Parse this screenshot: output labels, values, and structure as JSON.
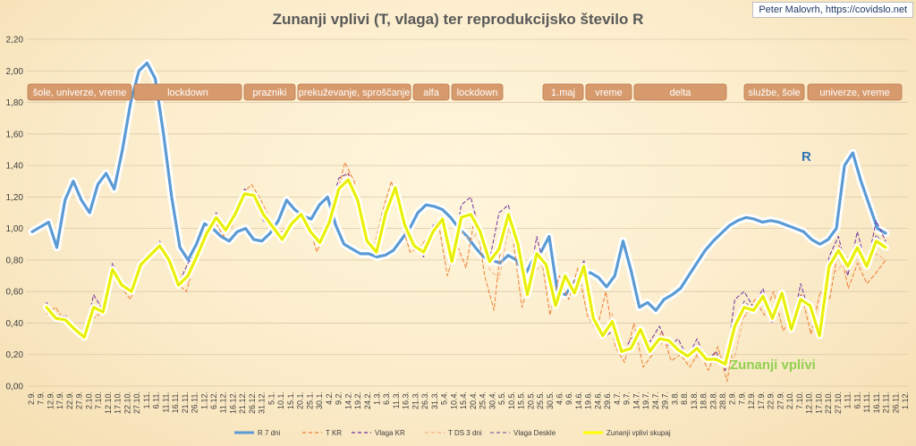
{
  "credit": "Peter Malovrh, https://covidslo.net",
  "chart_data": {
    "type": "line",
    "title": "Zunanji vplivi (T, vlaga) ter reprodukcijsko število R",
    "ylim": [
      0,
      2.2
    ],
    "ytick_labels": [
      "0,00",
      "0,20",
      "0,40",
      "0,60",
      "0,80",
      "1,00",
      "1,20",
      "1,40",
      "1,60",
      "1,80",
      "2,00",
      "2,20"
    ],
    "xtick_labels": [
      "2.9.",
      "7.9.",
      "12.9.",
      "17.9.",
      "22.9.",
      "27.9.",
      "2.10.",
      "7.10.",
      "12.10.",
      "17.10.",
      "22.10.",
      "27.10.",
      "1.11.",
      "6.11.",
      "11.11.",
      "16.11.",
      "21.11.",
      "26.11.",
      "1.12.",
      "6.12.",
      "11.12.",
      "16.12.",
      "21.12.",
      "26.12.",
      "31.12.",
      "5.1.",
      "10.1.",
      "15.1.",
      "20.1.",
      "25.1.",
      "30.1.",
      "4.2.",
      "9.2.",
      "14.2.",
      "19.2.",
      "24.2.",
      "1.3.",
      "6.3.",
      "11.3.",
      "16.3.",
      "21.3.",
      "26.3.",
      "31.3.",
      "5.4.",
      "10.4.",
      "15.4.",
      "20.4.",
      "25.4.",
      "30.4.",
      "5.5.",
      "10.5.",
      "15.5.",
      "20.5.",
      "25.5.",
      "30.5.",
      "4.6.",
      "9.6.",
      "14.6.",
      "19.6.",
      "24.6.",
      "29.6.",
      "4.7.",
      "9.7.",
      "14.7.",
      "19.7.",
      "24.7.",
      "29.7.",
      "3.8.",
      "8.8.",
      "13.8.",
      "18.8.",
      "23.8.",
      "28.8.",
      "2.9.",
      "7.9.",
      "12.9.",
      "17.9.",
      "22.9.",
      "27.9.",
      "2.10.",
      "7.10.",
      "12.10.",
      "17.10.",
      "22.10.",
      "27.10.",
      "1.11.",
      "6.11.",
      "11.11.",
      "16.11.",
      "21.11.",
      "26.11.",
      "1.12."
    ],
    "grid": true,
    "legend_position": "bottom",
    "series": [
      {
        "name": "R 7 dni",
        "color": "#5b9bd5",
        "style": "solid",
        "y": [
          0.98,
          1.01,
          1.04,
          0.88,
          1.18,
          1.3,
          1.18,
          1.1,
          1.28,
          1.35,
          1.25,
          1.5,
          1.8,
          2.0,
          2.05,
          1.95,
          1.6,
          1.2,
          0.88,
          0.8,
          0.9,
          1.03,
          1.0,
          0.95,
          0.92,
          0.98,
          1.0,
          0.93,
          0.92,
          0.97,
          1.05,
          1.18,
          1.12,
          1.08,
          1.06,
          1.15,
          1.2,
          1.02,
          0.9,
          0.87,
          0.84,
          0.84,
          0.82,
          0.83,
          0.86,
          0.93,
          1.0,
          1.1,
          1.15,
          1.14,
          1.12,
          1.07,
          1.0,
          0.95,
          0.88,
          0.82,
          0.8,
          0.78,
          0.83,
          0.8,
          0.7,
          0.8,
          0.85,
          0.95,
          0.6,
          0.58,
          0.66,
          0.7,
          0.72,
          0.69,
          0.63,
          0.7,
          0.92,
          0.73,
          0.5,
          0.53,
          0.48,
          0.55,
          0.58,
          0.62,
          0.7,
          0.78,
          0.86,
          0.92,
          0.97,
          1.02,
          1.05,
          1.07,
          1.06,
          1.04,
          1.05,
          1.04,
          1.02,
          1.0,
          0.98,
          0.93,
          0.9,
          0.93,
          1.0,
          1.4,
          1.48,
          1.3,
          1.15,
          1.0,
          0.97
        ]
      },
      {
        "name": "T KR",
        "color": "#ed7d31",
        "style": "dashed",
        "y": [
          0.46,
          0.5,
          0.4,
          0.38,
          0.33,
          0.43,
          0.47,
          0.72,
          0.63,
          0.55,
          0.74,
          0.8,
          0.88,
          0.85,
          0.65,
          0.6,
          0.8,
          0.92,
          1.05,
          0.95,
          1.02,
          1.22,
          1.28,
          1.18,
          1.05,
          0.97,
          1.02,
          1.1,
          1.05,
          0.85,
          1.0,
          1.18,
          1.42,
          1.3,
          0.95,
          0.85,
          1.1,
          1.3,
          1.05,
          0.85,
          0.88,
          0.95,
          1.05,
          0.7,
          0.9,
          0.75,
          1.1,
          0.7,
          0.48,
          1.05,
          0.95,
          0.5,
          0.7,
          0.85,
          0.45,
          0.7,
          0.55,
          0.75,
          0.45,
          0.35,
          0.6,
          0.25,
          0.15,
          0.4,
          0.12,
          0.2,
          0.35,
          0.16,
          0.2,
          0.12,
          0.22,
          0.1,
          0.25,
          0.03,
          0.4,
          0.45,
          0.55,
          0.45,
          0.6,
          0.35,
          0.45,
          0.58,
          0.33,
          0.6,
          0.55,
          0.9,
          0.62,
          0.78,
          0.65,
          0.72,
          0.8
        ]
      },
      {
        "name": "Vlaga KR",
        "color": "#7030a0",
        "style": "dashed",
        "y": [
          0.53,
          0.42,
          0.45,
          0.35,
          0.3,
          0.58,
          0.48,
          0.78,
          0.65,
          0.62,
          0.8,
          0.85,
          0.92,
          0.78,
          0.65,
          0.78,
          0.85,
          0.98,
          1.1,
          1.0,
          1.12,
          1.25,
          1.2,
          1.05,
          1.0,
          0.92,
          1.05,
          1.1,
          0.95,
          0.93,
          1.08,
          1.32,
          1.35,
          1.15,
          0.9,
          0.85,
          1.12,
          1.25,
          1.0,
          0.9,
          0.82,
          1.02,
          1.08,
          0.8,
          1.15,
          1.2,
          0.95,
          0.8,
          1.1,
          1.15,
          0.85,
          0.6,
          0.95,
          0.7,
          0.55,
          0.7,
          0.6,
          0.8,
          0.4,
          0.3,
          0.35,
          0.2,
          0.3,
          0.35,
          0.28,
          0.38,
          0.25,
          0.3,
          0.18,
          0.3,
          0.15,
          0.22,
          0.1,
          0.55,
          0.6,
          0.5,
          0.62,
          0.4,
          0.6,
          0.35,
          0.65,
          0.45,
          0.3,
          0.82,
          0.95,
          0.7,
          0.98,
          0.75,
          1.05,
          0.92
        ]
      },
      {
        "name": "T DS 3 dni",
        "color": "#f4b183",
        "style": "dashed",
        "y": [
          0.48,
          0.44,
          0.4,
          0.36,
          0.32,
          0.48,
          0.5,
          0.7,
          0.64,
          0.6,
          0.76,
          0.82,
          0.86,
          0.8,
          0.66,
          0.66,
          0.82,
          0.96,
          1.04,
          0.98,
          1.08,
          1.2,
          1.22,
          1.1,
          1.02,
          0.94,
          1.02,
          1.08,
          1.0,
          0.9,
          1.02,
          1.22,
          1.36,
          1.22,
          0.94,
          0.86,
          1.08,
          1.24,
          1.02,
          0.88,
          0.86,
          0.96,
          1.04,
          0.78,
          0.98,
          0.92,
          1.0,
          0.74,
          0.68,
          1.0,
          0.9,
          0.58,
          0.74,
          0.78,
          0.5,
          0.68,
          0.58,
          0.74,
          0.44,
          0.34,
          0.46,
          0.24,
          0.22,
          0.36,
          0.2,
          0.26,
          0.3,
          0.22,
          0.2,
          0.18,
          0.2,
          0.14,
          0.2,
          0.18,
          0.46,
          0.48,
          0.54,
          0.44,
          0.58,
          0.38,
          0.52,
          0.52,
          0.34,
          0.7,
          0.74,
          0.82,
          0.78,
          0.76,
          0.84,
          0.8
        ]
      },
      {
        "name": "Vlaga Deskle",
        "color": "#8064a2",
        "style": "dashed",
        "y": [
          0.5,
          0.42,
          0.43,
          0.36,
          0.31,
          0.52,
          0.47,
          0.74,
          0.64,
          0.6,
          0.78,
          0.84,
          0.9,
          0.8,
          0.64,
          0.72,
          0.84,
          0.97,
          1.08,
          1.0,
          1.1,
          1.24,
          1.2,
          1.08,
          1.01,
          0.93,
          1.04,
          1.09,
          0.98,
          0.92,
          1.04,
          1.26,
          1.32,
          1.18,
          0.92,
          0.85,
          1.1,
          1.26,
          1.02,
          0.9,
          0.85,
          0.98,
          1.06,
          0.78,
          1.06,
          1.08,
          0.98,
          0.8,
          0.88,
          1.1,
          0.9,
          0.58,
          0.86,
          0.76,
          0.52,
          0.7,
          0.6,
          0.78,
          0.42,
          0.32,
          0.4,
          0.22,
          0.26,
          0.36,
          0.24,
          0.32,
          0.28,
          0.26,
          0.18,
          0.26,
          0.16,
          0.18,
          0.14,
          0.4,
          0.54,
          0.48,
          0.58,
          0.42,
          0.6,
          0.36,
          0.58,
          0.5,
          0.32,
          0.76,
          0.88,
          0.74,
          0.9,
          0.76,
          0.96,
          0.88
        ]
      },
      {
        "name": "Zunanji vplivi skupaj",
        "color": "#ffff00",
        "style": "solid",
        "y": [
          0.5,
          0.43,
          0.42,
          0.36,
          0.31,
          0.5,
          0.47,
          0.74,
          0.64,
          0.6,
          0.77,
          0.83,
          0.89,
          0.8,
          0.64,
          0.7,
          0.83,
          0.97,
          1.07,
          0.99,
          1.09,
          1.22,
          1.21,
          1.09,
          1.01,
          0.93,
          1.03,
          1.09,
          0.98,
          0.91,
          1.04,
          1.25,
          1.31,
          1.18,
          0.92,
          0.85,
          1.1,
          1.26,
          1.02,
          0.89,
          0.85,
          0.98,
          1.06,
          0.79,
          1.07,
          1.09,
          0.98,
          0.79,
          0.87,
          1.09,
          0.9,
          0.58,
          0.84,
          0.77,
          0.51,
          0.7,
          0.59,
          0.76,
          0.43,
          0.32,
          0.41,
          0.22,
          0.24,
          0.36,
          0.22,
          0.3,
          0.29,
          0.23,
          0.19,
          0.24,
          0.17,
          0.17,
          0.14,
          0.38,
          0.5,
          0.48,
          0.57,
          0.43,
          0.59,
          0.36,
          0.55,
          0.51,
          0.32,
          0.76,
          0.86,
          0.76,
          0.88,
          0.76,
          0.92,
          0.88
        ]
      }
    ],
    "banners": [
      "šole, univerze, vreme",
      "lockdown",
      "prazniki",
      "prekuževanje, sproščanje",
      "alfa",
      "lockdown",
      "1.maj",
      "vreme",
      "delta",
      "službe, šole",
      "univerze, vreme"
    ],
    "annotations": [
      {
        "text": "R",
        "color": "#2e75b6"
      },
      {
        "text": "Zunanji vplivi",
        "color": "#92d050"
      }
    ]
  }
}
